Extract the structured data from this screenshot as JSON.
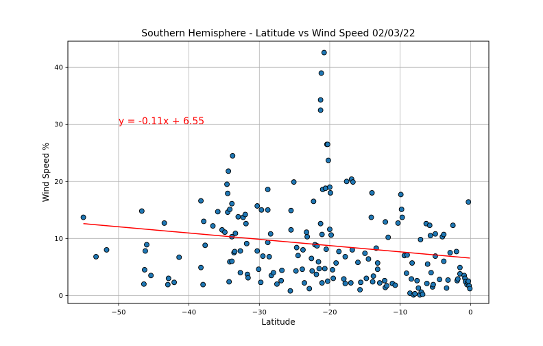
{
  "chart_data": {
    "type": "scatter",
    "title": "Southern Hemisphere - Latitude vs Wind Speed 02/03/22",
    "xlabel": "Latitude",
    "ylabel": "Wind Speed %",
    "xlim": [
      -57.2,
      2.6
    ],
    "ylim": [
      -1.4,
      44.6
    ],
    "xticks": [
      -50,
      -40,
      -30,
      -20,
      -10,
      0
    ],
    "yticks": [
      0,
      10,
      20,
      30,
      40
    ],
    "grid": true,
    "marker_color": "#1f77b4",
    "marker_edge_color": "#000000",
    "regression": {
      "slope": -0.11,
      "intercept": 6.55,
      "x_range": [
        -55,
        -0.1
      ],
      "color": "#ff0000",
      "equation_text": "y = -0.11x + 6.55",
      "annotation_at": [
        -50,
        30
      ]
    },
    "points": [
      [
        -55.0,
        13.7
      ],
      [
        -53.2,
        6.8
      ],
      [
        -51.7,
        8.0
      ],
      [
        -46.7,
        14.8
      ],
      [
        -46.4,
        2.0
      ],
      [
        -46.3,
        4.5
      ],
      [
        -46.2,
        7.8
      ],
      [
        -46.0,
        8.9
      ],
      [
        -45.4,
        3.5
      ],
      [
        -43.5,
        12.7
      ],
      [
        -43.0,
        1.9
      ],
      [
        -42.9,
        3.0
      ],
      [
        -42.1,
        2.3
      ],
      [
        -41.4,
        6.7
      ],
      [
        -38.3,
        16.6
      ],
      [
        -38.3,
        4.9
      ],
      [
        -38.0,
        1.9
      ],
      [
        -37.9,
        13.0
      ],
      [
        -37.7,
        8.8
      ],
      [
        -36.6,
        12.2
      ],
      [
        -35.9,
        14.7
      ],
      [
        -35.3,
        11.5
      ],
      [
        -34.9,
        11.1
      ],
      [
        -34.6,
        19.5
      ],
      [
        -34.5,
        17.9
      ],
      [
        -34.5,
        14.6
      ],
      [
        -34.4,
        21.8
      ],
      [
        -34.2,
        15.1
      ],
      [
        -34.3,
        2.4
      ],
      [
        -34.2,
        5.9
      ],
      [
        -33.9,
        16.1
      ],
      [
        -33.9,
        6.0
      ],
      [
        -33.9,
        10.3
      ],
      [
        -33.8,
        24.5
      ],
      [
        -33.6,
        7.5
      ],
      [
        -33.5,
        7.7
      ],
      [
        -33.4,
        10.9
      ],
      [
        -33.0,
        13.8
      ],
      [
        -32.7,
        7.8
      ],
      [
        -32.7,
        4.0
      ],
      [
        -32.3,
        13.7
      ],
      [
        -32.0,
        14.2
      ],
      [
        -31.9,
        12.6
      ],
      [
        -31.8,
        9.1
      ],
      [
        -31.7,
        3.7
      ],
      [
        -31.6,
        3.1
      ],
      [
        -30.3,
        15.7
      ],
      [
        -30.3,
        7.8
      ],
      [
        -30.1,
        4.6
      ],
      [
        -29.8,
        2.3
      ],
      [
        -29.7,
        15.0
      ],
      [
        -29.5,
        6.9
      ],
      [
        -28.8,
        18.6
      ],
      [
        -28.8,
        15.0
      ],
      [
        -28.8,
        9.3
      ],
      [
        -28.6,
        6.8
      ],
      [
        -28.4,
        10.8
      ],
      [
        -28.3,
        3.5
      ],
      [
        -28.0,
        4.0
      ],
      [
        -27.5,
        2.0
      ],
      [
        -26.9,
        2.6
      ],
      [
        -26.8,
        4.4
      ],
      [
        -25.6,
        0.8
      ],
      [
        -25.5,
        11.5
      ],
      [
        -25.5,
        14.9
      ],
      [
        -25.1,
        19.9
      ],
      [
        -24.8,
        4.3
      ],
      [
        -24.7,
        8.4
      ],
      [
        -24.5,
        7.0
      ],
      [
        -23.9,
        4.6
      ],
      [
        -23.8,
        8.0
      ],
      [
        -23.6,
        2.2
      ],
      [
        -23.3,
        11.1
      ],
      [
        -23.2,
        10.3
      ],
      [
        -22.9,
        1.2
      ],
      [
        -22.6,
        6.5
      ],
      [
        -22.5,
        4.3
      ],
      [
        -22.3,
        16.5
      ],
      [
        -22.1,
        8.9
      ],
      [
        -21.9,
        3.7
      ],
      [
        -21.8,
        8.7
      ],
      [
        -21.5,
        4.7
      ],
      [
        -21.6,
        5.9
      ],
      [
        -21.3,
        34.3
      ],
      [
        -21.3,
        32.5
      ],
      [
        -21.2,
        39.0
      ],
      [
        -21.3,
        12.6
      ],
      [
        -21.1,
        10.7
      ],
      [
        -21.1,
        2.2
      ],
      [
        -21.0,
        18.6
      ],
      [
        -20.8,
        42.6
      ],
      [
        -20.6,
        18.8
      ],
      [
        -20.7,
        4.7
      ],
      [
        -20.5,
        8.1
      ],
      [
        -20.4,
        26.5
      ],
      [
        -20.3,
        26.5
      ],
      [
        -20.2,
        23.7
      ],
      [
        -20.3,
        2.5
      ],
      [
        -20.0,
        11.6
      ],
      [
        -20.0,
        19.0
      ],
      [
        -19.9,
        18.0
      ],
      [
        -19.8,
        10.6
      ],
      [
        -19.6,
        4.5
      ],
      [
        -19.5,
        3.0
      ],
      [
        -19.1,
        5.7
      ],
      [
        -18.7,
        7.7
      ],
      [
        -18.0,
        2.9
      ],
      [
        -17.8,
        2.1
      ],
      [
        -17.8,
        6.8
      ],
      [
        -17.6,
        20.0
      ],
      [
        -17.0,
        2.2
      ],
      [
        -16.9,
        20.4
      ],
      [
        -16.8,
        8.0
      ],
      [
        -16.7,
        19.9
      ],
      [
        -16.0,
        5.8
      ],
      [
        -15.7,
        1.0
      ],
      [
        -15.6,
        2.3
      ],
      [
        -15.0,
        7.4
      ],
      [
        -14.8,
        3.0
      ],
      [
        -14.5,
        6.4
      ],
      [
        -14.1,
        13.7
      ],
      [
        -14.0,
        18.0
      ],
      [
        -13.9,
        2.4
      ],
      [
        -13.8,
        3.4
      ],
      [
        -13.4,
        8.3
      ],
      [
        -13.2,
        5.7
      ],
      [
        -13.2,
        4.6
      ],
      [
        -12.9,
        2.2
      ],
      [
        -12.2,
        2.6
      ],
      [
        -12.1,
        12.9
      ],
      [
        -12.1,
        1.4
      ],
      [
        -11.9,
        1.7
      ],
      [
        -11.7,
        10.2
      ],
      [
        -11.1,
        2.1
      ],
      [
        -10.7,
        1.8
      ],
      [
        -10.3,
        12.7
      ],
      [
        -9.9,
        17.7
      ],
      [
        -9.8,
        15.1
      ],
      [
        -9.7,
        13.7
      ],
      [
        -9.4,
        7.0
      ],
      [
        -9.1,
        3.9
      ],
      [
        -9.0,
        7.1
      ],
      [
        -8.6,
        0.4
      ],
      [
        -8.4,
        2.9
      ],
      [
        -8.3,
        5.7
      ],
      [
        -8.1,
        0.1
      ],
      [
        -7.9,
        0.3
      ],
      [
        -7.6,
        2.6
      ],
      [
        -7.4,
        1.3
      ],
      [
        -7.2,
        0.1
      ],
      [
        -7.1,
        9.8
      ],
      [
        -7.0,
        0.6
      ],
      [
        -6.8,
        0.2
      ],
      [
        -6.3,
        12.6
      ],
      [
        -6.2,
        2.1
      ],
      [
        -6.1,
        5.5
      ],
      [
        -5.8,
        12.3
      ],
      [
        -5.7,
        10.5
      ],
      [
        -5.6,
        4.0
      ],
      [
        -5.4,
        1.5
      ],
      [
        -5.3,
        1.9
      ],
      [
        -5.0,
        10.8
      ],
      [
        -5.0,
        6.9
      ],
      [
        -4.4,
        2.8
      ],
      [
        -4.0,
        10.3
      ],
      [
        -3.8,
        6.0
      ],
      [
        -3.8,
        10.7
      ],
      [
        -3.4,
        1.3
      ],
      [
        -3.2,
        2.7
      ],
      [
        -2.9,
        7.5
      ],
      [
        -2.5,
        12.3
      ],
      [
        -2.0,
        7.7
      ],
      [
        -1.9,
        2.6
      ],
      [
        -1.8,
        2.9
      ],
      [
        -1.5,
        4.9
      ],
      [
        -1.5,
        3.8
      ],
      [
        -0.9,
        3.5
      ],
      [
        -0.8,
        3.0
      ],
      [
        -0.7,
        2.4
      ],
      [
        -0.5,
        1.9
      ],
      [
        -0.4,
        2.3
      ],
      [
        -0.3,
        16.4
      ],
      [
        -0.2,
        1.7
      ],
      [
        -0.1,
        1.2
      ],
      [
        -0.3,
        2.5
      ]
    ]
  }
}
